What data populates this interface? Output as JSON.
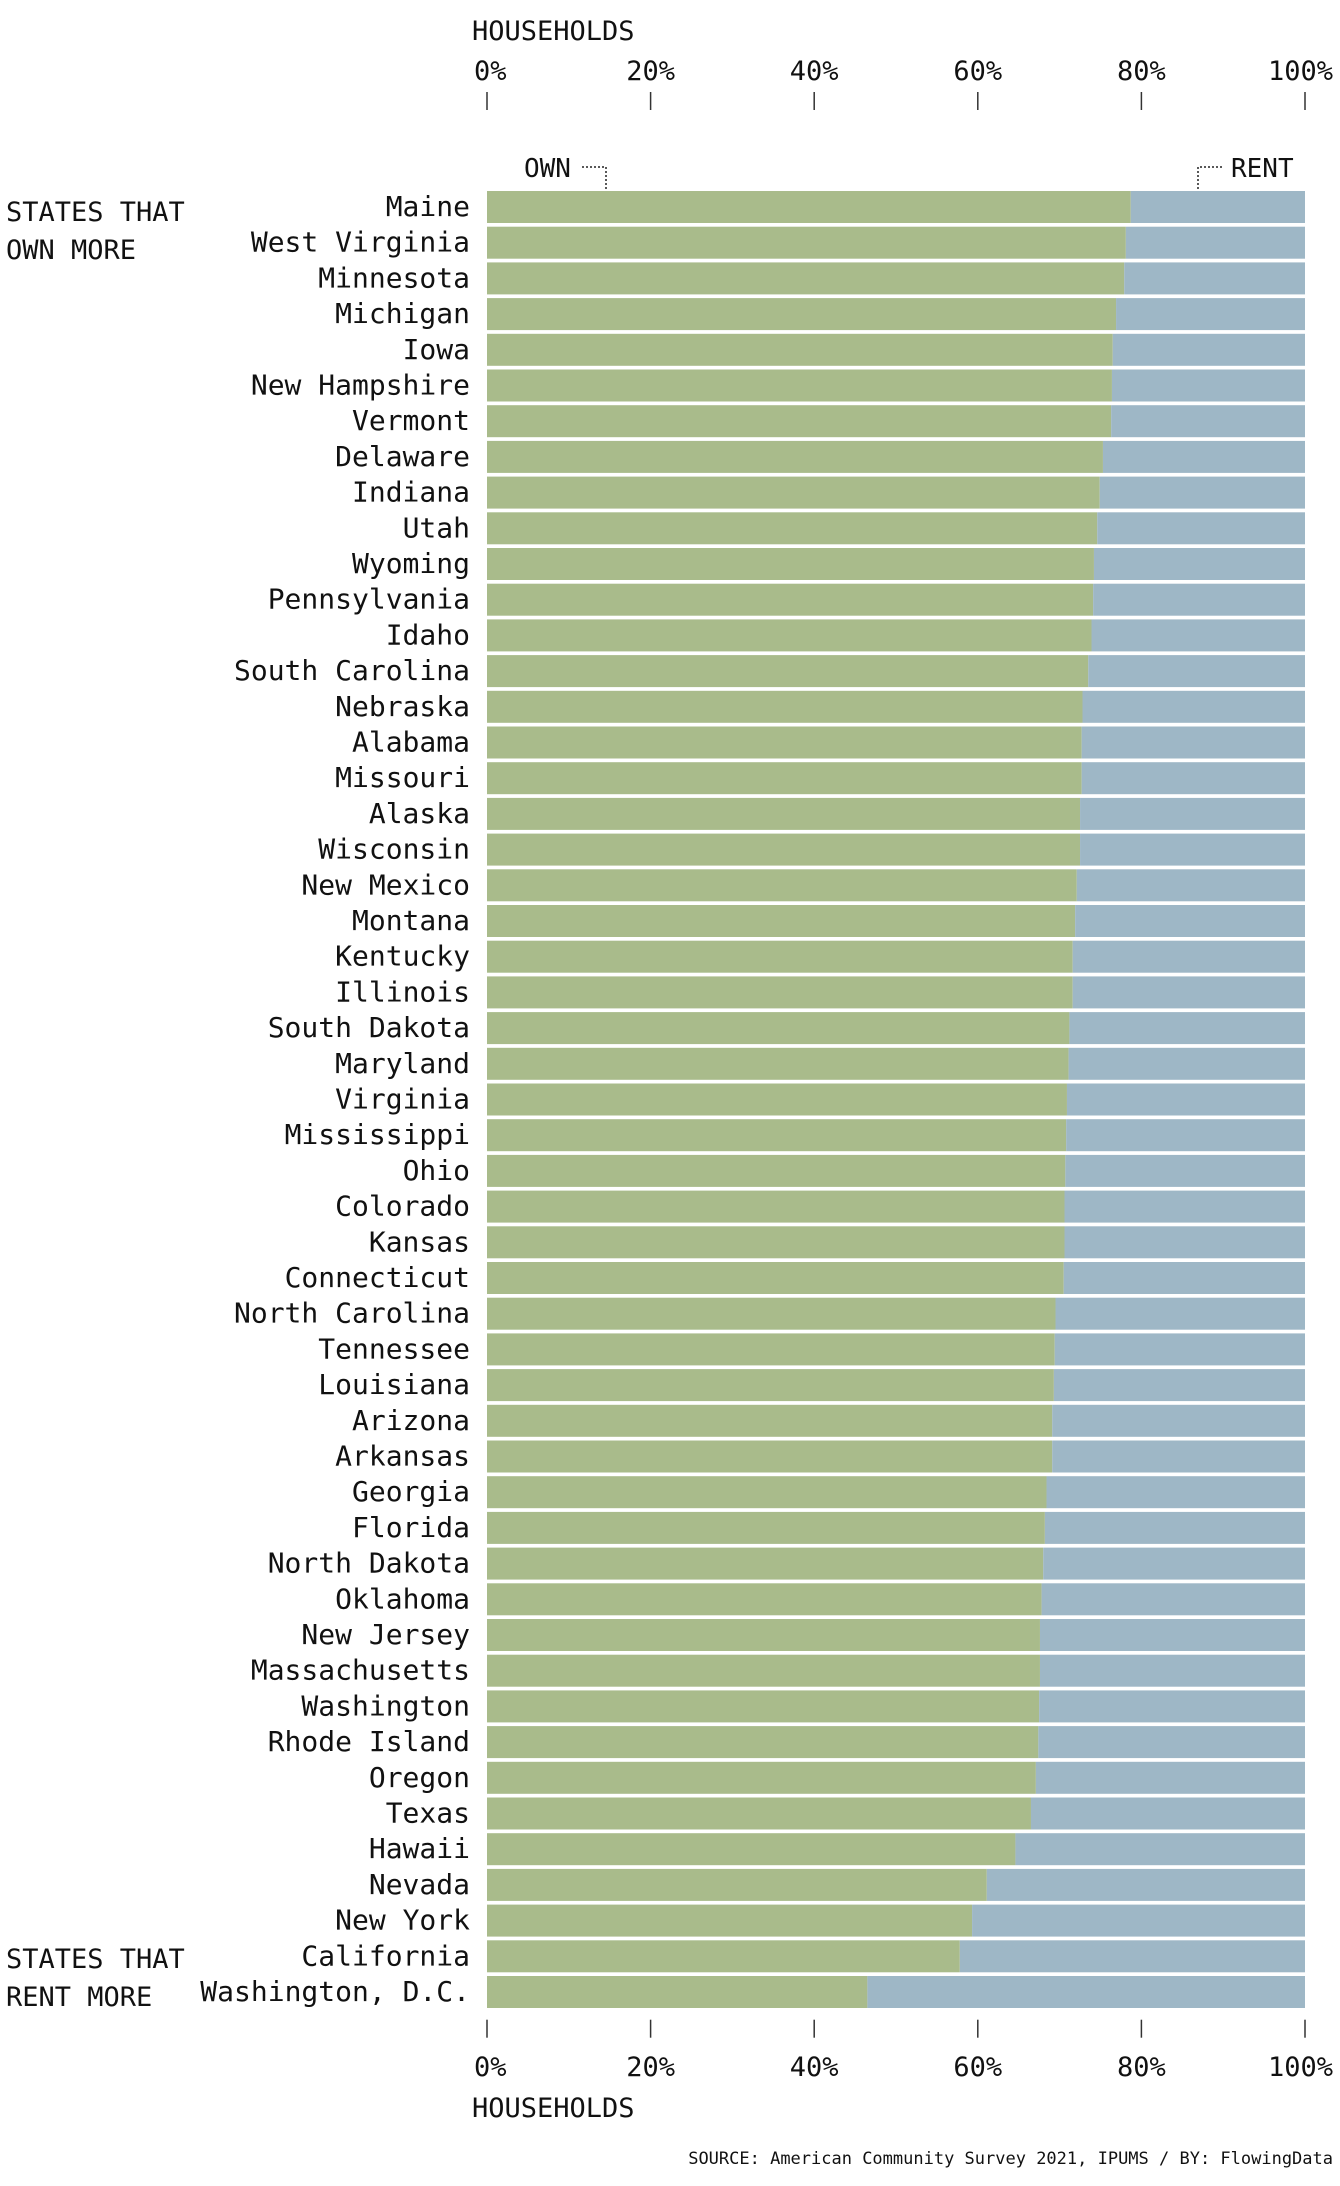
{
  "chart_data": {
    "type": "bar",
    "stacked": true,
    "orientation": "horizontal",
    "axis_title_top": "HOUSEHOLDS",
    "axis_title_bottom": "HOUSEHOLDS",
    "xlim": [
      0,
      100
    ],
    "x_ticks": [
      "0%",
      "20%",
      "40%",
      "60%",
      "80%",
      "100%"
    ],
    "series_labels": {
      "own": "OWN",
      "rent": "RENT"
    },
    "side_labels": {
      "top": [
        "STATES THAT",
        "OWN MORE"
      ],
      "bottom": [
        "STATES THAT",
        "RENT MORE"
      ]
    },
    "colors": {
      "own": "#a9bb8b",
      "rent": "#9eb7c6"
    },
    "categories": [
      "Maine",
      "West Virginia",
      "Minnesota",
      "Michigan",
      "Iowa",
      "New Hampshire",
      "Vermont",
      "Delaware",
      "Indiana",
      "Utah",
      "Wyoming",
      "Pennsylvania",
      "Idaho",
      "South Carolina",
      "Nebraska",
      "Alabama",
      "Missouri",
      "Alaska",
      "Wisconsin",
      "New Mexico",
      "Montana",
      "Kentucky",
      "Illinois",
      "South Dakota",
      "Maryland",
      "Virginia",
      "Mississippi",
      "Ohio",
      "Colorado",
      "Kansas",
      "Connecticut",
      "North Carolina",
      "Tennessee",
      "Louisiana",
      "Arizona",
      "Arkansas",
      "Georgia",
      "Florida",
      "North Dakota",
      "Oklahoma",
      "New Jersey",
      "Massachusetts",
      "Washington",
      "Rhode Island",
      "Oregon",
      "Texas",
      "Hawaii",
      "Nevada",
      "New York",
      "California",
      "Washington, D.C."
    ],
    "series": [
      {
        "name": "OWN",
        "values": [
          78.7,
          78.1,
          77.9,
          76.9,
          76.5,
          76.4,
          76.3,
          75.3,
          74.9,
          74.6,
          74.2,
          74.1,
          73.9,
          73.5,
          72.8,
          72.7,
          72.7,
          72.5,
          72.5,
          72.1,
          71.9,
          71.6,
          71.6,
          71.2,
          71.1,
          70.9,
          70.8,
          70.7,
          70.6,
          70.6,
          70.5,
          69.5,
          69.4,
          69.3,
          69.1,
          69.1,
          68.4,
          68.2,
          68.0,
          67.8,
          67.6,
          67.6,
          67.5,
          67.4,
          67.1,
          66.5,
          64.6,
          61.1,
          59.3,
          57.8,
          46.5
        ]
      },
      {
        "name": "RENT",
        "values": [
          21.3,
          21.9,
          22.1,
          23.1,
          23.5,
          23.6,
          23.7,
          24.7,
          25.1,
          25.4,
          25.8,
          25.9,
          26.1,
          26.5,
          27.2,
          27.3,
          27.3,
          27.5,
          27.5,
          27.9,
          28.1,
          28.4,
          28.4,
          28.8,
          28.9,
          29.1,
          29.2,
          29.3,
          29.4,
          29.4,
          29.5,
          30.5,
          30.6,
          30.7,
          30.9,
          30.9,
          31.6,
          31.8,
          32.0,
          32.2,
          32.4,
          32.4,
          32.5,
          32.6,
          32.9,
          33.5,
          35.4,
          38.9,
          40.7,
          42.2,
          53.5
        ]
      }
    ],
    "source": "SOURCE: American Community Survey 2021, IPUMS / BY: FlowingData"
  }
}
